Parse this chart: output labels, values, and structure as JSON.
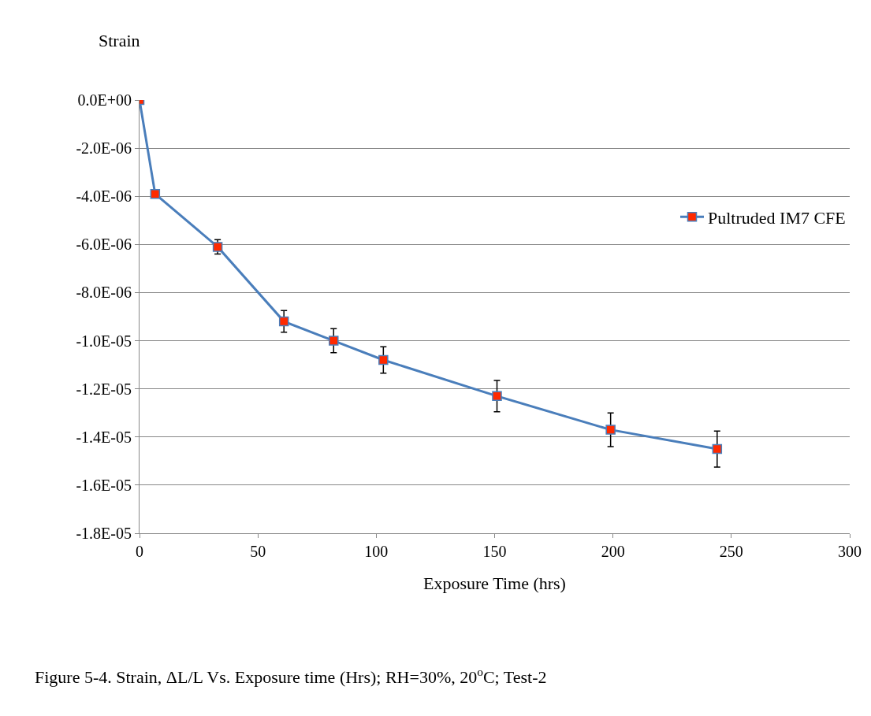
{
  "chart_data": {
    "type": "line",
    "ylabel": "Strain",
    "xlabel": "Exposure Time (hrs)",
    "x": [
      0,
      6.6,
      33,
      61,
      82,
      103,
      151,
      199,
      244
    ],
    "series": [
      {
        "name": "Pultruded IM7 CFE",
        "color": "#4a7ebb",
        "colors": [
          "#ff2a00",
          "#ff2a00",
          "#ff2a00",
          "#ff2a00",
          "#ff2a00",
          "#ff2a00",
          "#ff2a00",
          "#ff2a00",
          "#ff2a00"
        ],
        "values": [
          0,
          -3.9e-06,
          -6.1e-06,
          -9.2e-06,
          -1e-05,
          -1.08e-05,
          -1.23e-05,
          -1.37e-05,
          -1.45e-05
        ],
        "errors": [
          null,
          null,
          3e-07,
          4.5e-07,
          5e-07,
          5.5e-07,
          6.5e-07,
          7e-07,
          7.5e-07
        ]
      }
    ],
    "xlim": [
      0,
      300
    ],
    "xticks": [
      0,
      50,
      100,
      150,
      200,
      250,
      300
    ],
    "ylim": [
      -1.8e-05,
      0
    ],
    "yticks": [
      {
        "value": 0,
        "label": "0.0E+00"
      },
      {
        "value": -2e-06,
        "label": "-2.0E-06"
      },
      {
        "value": -4e-06,
        "label": "-4.0E-06"
      },
      {
        "value": -6e-06,
        "label": "-6.0E-06"
      },
      {
        "value": -8e-06,
        "label": "-8.0E-06"
      },
      {
        "value": -1e-05,
        "label": "-1.0E-05"
      },
      {
        "value": -1.2e-05,
        "label": "-1.2E-05"
      },
      {
        "value": -1.4e-05,
        "label": "-1.4E-05"
      },
      {
        "value": -1.6e-05,
        "label": "-1.6E-05"
      },
      {
        "value": -1.8e-05,
        "label": "-1.8E-05"
      }
    ],
    "grid": "y",
    "legend": "right",
    "marker": "square",
    "line_style": "solid",
    "annotations": [
      "Figure 5-4. Strain, ΔL/L Vs. Exposure time (Hrs); RH=30%, 20$^{o}$C; Test-2"
    ]
  }
}
